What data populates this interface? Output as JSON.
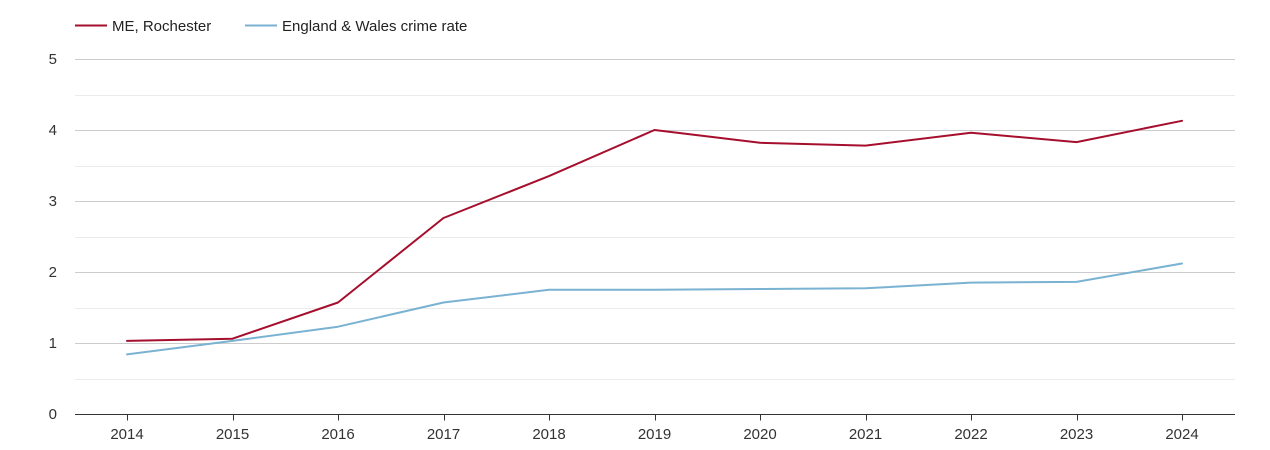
{
  "chart_data": {
    "type": "line",
    "title": "",
    "xlabel": "",
    "ylabel": "",
    "x": [
      "2014",
      "2015",
      "2016",
      "2017",
      "2018",
      "2019",
      "2020",
      "2021",
      "2022",
      "2023",
      "2024"
    ],
    "ylim": [
      0,
      5
    ],
    "yticks": [
      "0",
      "1",
      "2",
      "3",
      "4",
      "5"
    ],
    "grid": true,
    "legend_position": "top-left",
    "series": [
      {
        "name": "ME, Rochester",
        "color": "#a50f2d",
        "values": [
          1.03,
          1.06,
          1.57,
          2.76,
          3.35,
          4.0,
          3.82,
          3.78,
          3.96,
          3.83,
          4.13
        ]
      },
      {
        "name": "England & Wales crime rate",
        "color": "#7ab2d2",
        "values": [
          0.84,
          1.03,
          1.23,
          1.57,
          1.75,
          1.75,
          1.76,
          1.77,
          1.85,
          1.86,
          2.12
        ]
      }
    ]
  }
}
